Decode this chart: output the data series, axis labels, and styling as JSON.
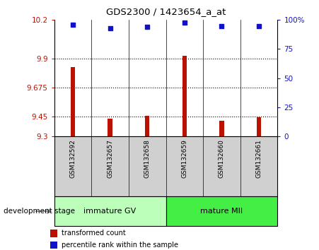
{
  "title": "GDS2300 / 1423654_a_at",
  "samples": [
    "GSM132592",
    "GSM132657",
    "GSM132658",
    "GSM132659",
    "GSM132660",
    "GSM132661"
  ],
  "bar_values": [
    9.835,
    9.435,
    9.458,
    9.925,
    9.42,
    9.448
  ],
  "bar_base": 9.3,
  "dot_values": [
    96,
    93,
    94,
    98,
    95,
    95
  ],
  "ylim_left": [
    9.3,
    10.2
  ],
  "ylim_right": [
    0,
    100
  ],
  "yticks_left": [
    9.3,
    9.45,
    9.675,
    9.9,
    10.2
  ],
  "yticks_right": [
    0,
    25,
    50,
    75,
    100
  ],
  "ytick_labels_left": [
    "9.3",
    "9.45",
    "9.675",
    "9.9",
    "10.2"
  ],
  "ytick_labels_right": [
    "0",
    "25",
    "50",
    "75",
    "100%"
  ],
  "hlines": [
    9.45,
    9.675,
    9.9
  ],
  "bar_color": "#bb1100",
  "dot_color": "#1111cc",
  "group1_label": "immature GV",
  "group2_label": "mature MII",
  "group1_color": "#bbffbb",
  "group2_color": "#44ee44",
  "stage_label": "development stage",
  "legend1_label": "transformed count",
  "legend2_label": "percentile rank within the sample",
  "bar_width": 0.12
}
